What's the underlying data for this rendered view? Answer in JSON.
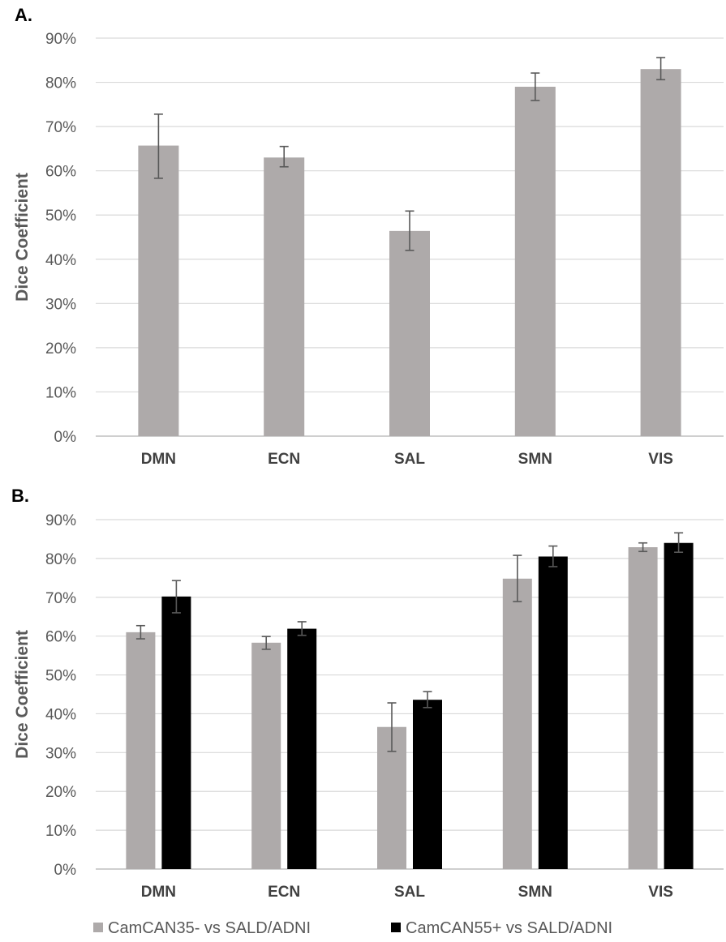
{
  "chart_data": [
    {
      "panel_label": "A.",
      "type": "bar",
      "ylabel": "Dice Coefficient",
      "xlabel": "",
      "ylim": [
        0,
        90
      ],
      "yticks": [
        "0%",
        "10%",
        "20%",
        "30%",
        "40%",
        "50%",
        "60%",
        "70%",
        "80%",
        "90%"
      ],
      "y_unit": "%",
      "grid": true,
      "categories": [
        "DMN",
        "ECN",
        "SAL",
        "SMN",
        "VIS"
      ],
      "series": [
        {
          "values": [
            65.7,
            63.0,
            46.4,
            79.0,
            83.0
          ],
          "error_low": [
            58.3,
            60.9,
            42.0,
            75.9,
            80.6
          ],
          "error_high": [
            72.8,
            65.5,
            50.9,
            82.1,
            85.6
          ],
          "color": "#aeaaaa"
        }
      ]
    },
    {
      "panel_label": "B.",
      "type": "bar",
      "ylabel": "Dice Coefficient",
      "xlabel": "",
      "ylim": [
        0,
        90
      ],
      "yticks": [
        "0%",
        "10%",
        "20%",
        "30%",
        "40%",
        "50%",
        "60%",
        "70%",
        "80%",
        "90%"
      ],
      "y_unit": "%",
      "grid": true,
      "legend_position": "bottom",
      "categories": [
        "DMN",
        "ECN",
        "SAL",
        "SMN",
        "VIS"
      ],
      "series": [
        {
          "name": "CamCAN35- vs SALD/ADNI",
          "values": [
            61.0,
            58.3,
            36.6,
            74.8,
            82.9
          ],
          "error_low": [
            59.3,
            56.6,
            30.3,
            68.9,
            81.8
          ],
          "error_high": [
            62.7,
            59.9,
            42.8,
            80.8,
            84.0
          ],
          "color": "#aeaaaa"
        },
        {
          "name": "CamCAN55+ vs SALD/ADNI",
          "values": [
            70.2,
            61.9,
            43.6,
            80.5,
            84.0
          ],
          "error_low": [
            66.0,
            60.2,
            41.6,
            77.9,
            81.6
          ],
          "error_high": [
            74.3,
            63.7,
            45.7,
            83.2,
            86.6
          ],
          "color": "#000000"
        }
      ]
    }
  ]
}
